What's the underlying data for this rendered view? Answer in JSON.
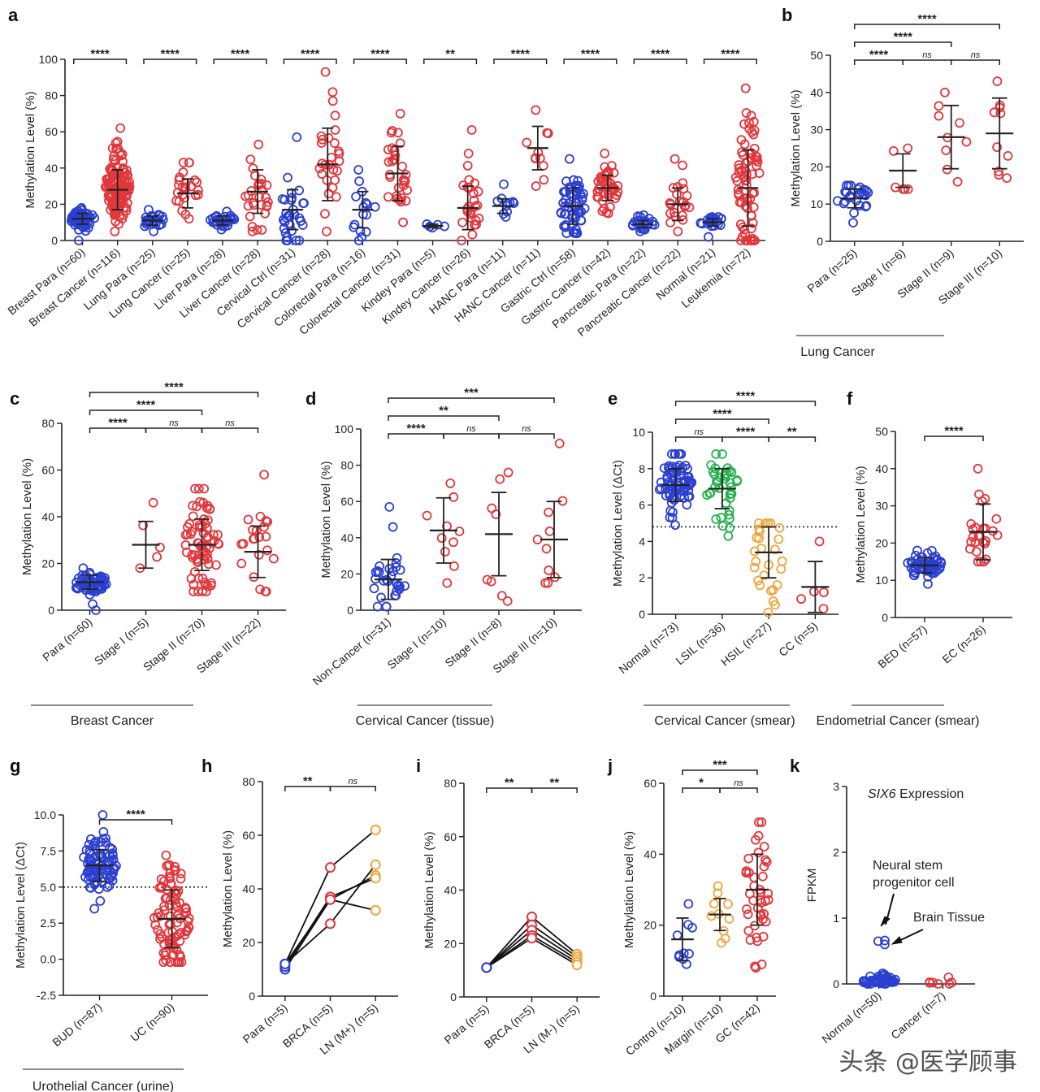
{
  "colors": {
    "blue": "#2b3fd1",
    "red": "#e2363c",
    "green": "#22b14c",
    "orange": "#f0a53a",
    "black": "#222222"
  },
  "watermark": "头条 @医学顾事",
  "chart_data": [
    {
      "id": "a",
      "type": "scatter",
      "panel_label": "a",
      "ylabel": "Methylation Level (%)",
      "ylim": [
        0,
        100
      ],
      "yticks": [
        "0",
        "20",
        "40",
        "60",
        "80",
        "100"
      ],
      "footer": "",
      "groups": [
        {
          "label": "Breast Para (n=60)",
          "color": "blue",
          "mean": 12,
          "sd": 3,
          "n": 60,
          "min": 0,
          "max": 18
        },
        {
          "label": "Breast Cancer (n=116)",
          "color": "red",
          "mean": 28,
          "sd": 11,
          "n": 116,
          "min": 5,
          "max": 62
        },
        {
          "label": "Lung Para (n=25)",
          "color": "blue",
          "mean": 11,
          "sd": 2.5,
          "n": 25,
          "min": 5,
          "max": 17
        },
        {
          "label": "Lung Cancer (n=25)",
          "color": "red",
          "mean": 26,
          "sd": 8,
          "n": 25,
          "min": 12,
          "max": 43
        },
        {
          "label": "Liver Para (n=28)",
          "color": "blue",
          "mean": 11,
          "sd": 2.5,
          "n": 28,
          "min": 6,
          "max": 16
        },
        {
          "label": "Liver Cancer (n=28)",
          "color": "red",
          "mean": 27,
          "sd": 12,
          "n": 28,
          "min": 5,
          "max": 53
        },
        {
          "label": "Cervical Ctrl (n=31)",
          "color": "blue",
          "mean": 17,
          "sd": 11,
          "n": 31,
          "min": 0,
          "max": 57
        },
        {
          "label": "Cervical Cancer (n=28)",
          "color": "red",
          "mean": 42,
          "sd": 20,
          "n": 28,
          "min": 5,
          "max": 93
        },
        {
          "label": "Colorectal Para (n=16)",
          "color": "blue",
          "mean": 17,
          "sd": 10,
          "n": 16,
          "min": 0,
          "max": 39
        },
        {
          "label": "Colorectal Cancer (n=31)",
          "color": "red",
          "mean": 37,
          "sd": 15,
          "n": 31,
          "min": 10,
          "max": 70
        },
        {
          "label": "Kindey Para (n=5)",
          "color": "blue",
          "mean": 8,
          "sd": 1,
          "n": 5,
          "min": 7,
          "max": 9
        },
        {
          "label": "Kindey Cancer (n=26)",
          "color": "red",
          "mean": 18,
          "sd": 12,
          "n": 26,
          "min": 0,
          "max": 61
        },
        {
          "label": "HANC Para (n=11)",
          "color": "blue",
          "mean": 19,
          "sd": 4,
          "n": 11,
          "min": 13,
          "max": 31
        },
        {
          "label": "HANC Cancer (n=11)",
          "color": "red",
          "mean": 51,
          "sd": 12,
          "n": 11,
          "min": 30,
          "max": 72
        },
        {
          "label": "Gastric Ctrl (n=58)",
          "color": "blue",
          "mean": 19,
          "sd": 10,
          "n": 58,
          "min": 4,
          "max": 45
        },
        {
          "label": "Gastric Cancer (n=42)",
          "color": "red",
          "mean": 29,
          "sd": 7,
          "n": 42,
          "min": 15,
          "max": 48
        },
        {
          "label": "Pancreatic Para (n=22)",
          "color": "blue",
          "mean": 9,
          "sd": 2,
          "n": 22,
          "min": 5,
          "max": 14
        },
        {
          "label": "Pancreatic Cancer (n=22)",
          "color": "red",
          "mean": 20,
          "sd": 9,
          "n": 22,
          "min": 5,
          "max": 45
        },
        {
          "label": "Normal (n=21)",
          "color": "blue",
          "mean": 10,
          "sd": 2,
          "n": 21,
          "min": 2,
          "max": 13
        },
        {
          "label": "Leukemia (n=72)",
          "color": "red",
          "mean": 29,
          "sd": 21,
          "n": 72,
          "min": 0,
          "max": 84
        }
      ],
      "brackets": [
        {
          "from": 0,
          "to": 1,
          "level": 0,
          "text": "****"
        },
        {
          "from": 2,
          "to": 3,
          "level": 0,
          "text": "****"
        },
        {
          "from": 4,
          "to": 5,
          "level": 0,
          "text": "****"
        },
        {
          "from": 6,
          "to": 7,
          "level": 0,
          "text": "****"
        },
        {
          "from": 8,
          "to": 9,
          "level": 0,
          "text": "****"
        },
        {
          "from": 10,
          "to": 11,
          "level": 0,
          "text": "**"
        },
        {
          "from": 12,
          "to": 13,
          "level": 0,
          "text": "****"
        },
        {
          "from": 14,
          "to": 15,
          "level": 0,
          "text": "****"
        },
        {
          "from": 16,
          "to": 17,
          "level": 0,
          "text": "****"
        },
        {
          "from": 18,
          "to": 19,
          "level": 0,
          "text": "****"
        }
      ]
    },
    {
      "id": "b",
      "type": "scatter",
      "panel_label": "b",
      "ylabel": "Methylation Level (%)",
      "ylim": [
        0,
        50
      ],
      "yticks": [
        "0",
        "10",
        "20",
        "30",
        "40",
        "50"
      ],
      "footer": "Lung Cancer",
      "groups": [
        {
          "label": "Para (n=25)",
          "color": "blue",
          "mean": 11.5,
          "sd": 2.5,
          "n": 25,
          "min": 5,
          "max": 15
        },
        {
          "label": "Stage I (n=6)",
          "color": "red",
          "mean": 19,
          "sd": 4.5,
          "n": 6,
          "min": 14,
          "max": 25
        },
        {
          "label": "Stage II (n=9)",
          "color": "red",
          "mean": 28,
          "sd": 8.5,
          "n": 9,
          "min": 16,
          "max": 40
        },
        {
          "label": "Stage III (n=10)",
          "color": "red",
          "mean": 29,
          "sd": 9.5,
          "n": 10,
          "min": 17,
          "max": 43
        }
      ],
      "brackets": [
        {
          "from": 0,
          "to": 1,
          "level": 0,
          "text": "****"
        },
        {
          "from": 1,
          "to": 2,
          "level": 0,
          "text": "ns"
        },
        {
          "from": 2,
          "to": 3,
          "level": 0,
          "text": "ns"
        },
        {
          "from": 0,
          "to": 2,
          "level": 1,
          "text": "****"
        },
        {
          "from": 0,
          "to": 3,
          "level": 2,
          "text": "****"
        }
      ]
    },
    {
      "id": "c",
      "type": "scatter",
      "panel_label": "c",
      "ylabel": "Methylation Level (%)",
      "ylim": [
        0,
        80
      ],
      "yticks": [
        "0",
        "20",
        "40",
        "60",
        "80"
      ],
      "footer": "Breast Cancer",
      "groups": [
        {
          "label": "Para (n=60)",
          "color": "blue",
          "mean": 12,
          "sd": 3,
          "n": 60,
          "min": 0,
          "max": 18
        },
        {
          "label": "Stage I (n=5)",
          "color": "red",
          "mean": 28,
          "sd": 10,
          "n": 5,
          "min": 18,
          "max": 46
        },
        {
          "label": "Stage II (n=70)",
          "color": "red",
          "mean": 28,
          "sd": 11,
          "n": 70,
          "min": 8,
          "max": 52
        },
        {
          "label": "Stage III (n=22)",
          "color": "red",
          "mean": 25,
          "sd": 11,
          "n": 22,
          "min": 8,
          "max": 58
        }
      ],
      "brackets": [
        {
          "from": 0,
          "to": 1,
          "level": 0,
          "text": "****"
        },
        {
          "from": 1,
          "to": 2,
          "level": 0,
          "text": "ns"
        },
        {
          "from": 2,
          "to": 3,
          "level": 0,
          "text": "ns"
        },
        {
          "from": 0,
          "to": 2,
          "level": 1,
          "text": "****"
        },
        {
          "from": 0,
          "to": 3,
          "level": 2,
          "text": "****"
        }
      ]
    },
    {
      "id": "d",
      "type": "scatter",
      "panel_label": "d",
      "ylabel": "Methylation Level (%)",
      "ylim": [
        0,
        100
      ],
      "yticks": [
        "0",
        "20",
        "40",
        "60",
        "80",
        "100"
      ],
      "footer": "Cervical Cancer (tissue)",
      "groups": [
        {
          "label": "Non-Cancer (n=31)",
          "color": "blue",
          "mean": 17,
          "sd": 11,
          "n": 31,
          "min": 2,
          "max": 57
        },
        {
          "label": "Stage I (n=10)",
          "color": "red",
          "mean": 44,
          "sd": 18,
          "n": 10,
          "min": 15,
          "max": 70
        },
        {
          "label": "Stage II (n=8)",
          "color": "red",
          "mean": 42,
          "sd": 23,
          "n": 8,
          "min": 5,
          "max": 76
        },
        {
          "label": "Stage III (n=10)",
          "color": "red",
          "mean": 39,
          "sd": 21,
          "n": 10,
          "min": 15,
          "max": 92
        }
      ],
      "brackets": [
        {
          "from": 0,
          "to": 1,
          "level": 0,
          "text": "****"
        },
        {
          "from": 1,
          "to": 2,
          "level": 0,
          "text": "ns"
        },
        {
          "from": 2,
          "to": 3,
          "level": 0,
          "text": "ns"
        },
        {
          "from": 0,
          "to": 2,
          "level": 1,
          "text": "**"
        },
        {
          "from": 0,
          "to": 3,
          "level": 2,
          "text": "***"
        }
      ]
    },
    {
      "id": "e",
      "type": "scatter",
      "panel_label": "e",
      "ylabel": "Methylation Level (ΔCt)",
      "ylim": [
        0,
        10
      ],
      "yticks": [
        "0",
        "2",
        "4",
        "6",
        "8",
        "10"
      ],
      "footer": "Cervical Cancer (smear)",
      "cutoff": 4.8,
      "groups": [
        {
          "label": "Normal (n=73)",
          "color": "blue",
          "mean": 7.1,
          "sd": 0.9,
          "n": 73,
          "min": 4.9,
          "max": 8.8
        },
        {
          "label": "LSIL (n=36)",
          "color": "green",
          "mean": 6.9,
          "sd": 1.1,
          "n": 36,
          "min": 4.3,
          "max": 8.8
        },
        {
          "label": "HSIL (n=27)",
          "color": "orange",
          "mean": 3.4,
          "sd": 1.4,
          "n": 27,
          "min": 0.1,
          "max": 5
        },
        {
          "label": "CC (n=5)",
          "color": "red",
          "mean": 1.5,
          "sd": 1.4,
          "n": 5,
          "min": 0.3,
          "max": 4
        }
      ],
      "brackets": [
        {
          "from": 0,
          "to": 1,
          "level": 0,
          "text": "ns"
        },
        {
          "from": 1,
          "to": 2,
          "level": 0,
          "text": "****"
        },
        {
          "from": 2,
          "to": 3,
          "level": 0,
          "text": "**"
        },
        {
          "from": 0,
          "to": 2,
          "level": 1,
          "text": "****"
        },
        {
          "from": 0,
          "to": 3,
          "level": 2,
          "text": "****"
        }
      ]
    },
    {
      "id": "f",
      "type": "scatter",
      "panel_label": "f",
      "ylabel": "Methylation Level (%)",
      "ylim": [
        0,
        50
      ],
      "yticks": [
        "0",
        "10",
        "20",
        "30",
        "40",
        "50"
      ],
      "footer": "Endometrial Cancer (smear)",
      "groups": [
        {
          "label": "BED (n=57)",
          "color": "blue",
          "mean": 14,
          "sd": 2,
          "n": 57,
          "min": 9,
          "max": 18
        },
        {
          "label": "EC (n=26)",
          "color": "red",
          "mean": 23,
          "sd": 7.5,
          "n": 26,
          "min": 15,
          "max": 40
        }
      ],
      "brackets": [
        {
          "from": 0,
          "to": 1,
          "level": 0,
          "text": "****"
        }
      ]
    },
    {
      "id": "g",
      "type": "scatter",
      "panel_label": "g",
      "ylabel": "Methylation Level (ΔCt)",
      "ylim": [
        -2.5,
        10
      ],
      "yticks": [
        "-2.5",
        "0.0",
        "2.5",
        "5.0",
        "7.5",
        "10.0"
      ],
      "footer": "Urothelial Cancer  (urine)",
      "cutoff": 5.0,
      "groups": [
        {
          "label": "BUD (n=87)",
          "color": "blue",
          "mean": 6.5,
          "sd": 1.1,
          "n": 87,
          "min": 3.5,
          "max": 10
        },
        {
          "label": "UC (n=90)",
          "color": "red",
          "mean": 2.8,
          "sd": 2,
          "n": 90,
          "min": -0.2,
          "max": 7.2
        }
      ],
      "brackets": [
        {
          "from": 0,
          "to": 1,
          "level": 0,
          "text": "****"
        }
      ]
    },
    {
      "id": "h",
      "type": "line",
      "panel_label": "h",
      "ylabel": "Methylation Level (%)",
      "ylim": [
        0,
        80
      ],
      "yticks": [
        "0",
        "20",
        "40",
        "60",
        "80"
      ],
      "footer": "",
      "categories": [
        "Para (n=5)",
        "BRCA (n=5)",
        "LN (M+) (n=5)"
      ],
      "pointColors": [
        "blue",
        "red",
        "orange"
      ],
      "series": [
        [
          12,
          48,
          62
        ],
        [
          10,
          36,
          45
        ],
        [
          11,
          37,
          44
        ],
        [
          12,
          36,
          32
        ],
        [
          12,
          27,
          49
        ]
      ],
      "brackets": [
        {
          "from": 0,
          "to": 1,
          "level": 0,
          "text": "**"
        },
        {
          "from": 1,
          "to": 2,
          "level": 0,
          "text": "ns"
        }
      ]
    },
    {
      "id": "i",
      "type": "line",
      "panel_label": "i",
      "ylabel": "Methylation Level (%)",
      "ylim": [
        0,
        80
      ],
      "yticks": [
        "0",
        "20",
        "40",
        "60",
        "80"
      ],
      "footer": "",
      "categories": [
        "Para (n=5)",
        "BRCA (n=5)",
        "LN (M-) (n=5)"
      ],
      "pointColors": [
        "blue",
        "red",
        "orange"
      ],
      "series": [
        [
          11,
          30,
          16
        ],
        [
          11,
          27,
          15
        ],
        [
          11,
          25,
          14
        ],
        [
          11,
          23,
          13
        ],
        [
          11,
          22,
          12
        ]
      ],
      "brackets": [
        {
          "from": 0,
          "to": 1,
          "level": 0,
          "text": "**"
        },
        {
          "from": 1,
          "to": 2,
          "level": 0,
          "text": "**"
        }
      ]
    },
    {
      "id": "j",
      "type": "scatter",
      "panel_label": "j",
      "ylabel": "Methylation Level (%)",
      "ylim": [
        0,
        60
      ],
      "yticks": [
        "0",
        "20",
        "40",
        "60"
      ],
      "footer": "",
      "groups": [
        {
          "label": "Control (n=10)",
          "color": "blue",
          "mean": 16,
          "sd": 6,
          "n": 10,
          "min": 9,
          "max": 26
        },
        {
          "label": "Margin (n=10)",
          "color": "orange",
          "mean": 23,
          "sd": 4.5,
          "n": 10,
          "min": 15,
          "max": 31
        },
        {
          "label": "GC (n=42)",
          "color": "red",
          "mean": 30,
          "sd": 10,
          "n": 42,
          "min": 8,
          "max": 49
        }
      ],
      "brackets": [
        {
          "from": 0,
          "to": 1,
          "level": 0,
          "text": "*"
        },
        {
          "from": 1,
          "to": 2,
          "level": 0,
          "text": "ns"
        },
        {
          "from": 0,
          "to": 2,
          "level": 1,
          "text": "***"
        }
      ]
    },
    {
      "id": "k",
      "type": "scatter",
      "panel_label": "k",
      "ylabel": "FPKM",
      "ylim": [
        0,
        3
      ],
      "yticks": [
        "0",
        "1",
        "2",
        "3"
      ],
      "footer": "",
      "title": "SIX6 Expression",
      "annotations": [
        "Neural stem progenitor cell",
        "Brain Tissue"
      ],
      "groups": [
        {
          "label": "Normal (n=50)",
          "color": "blue",
          "mean": 0.05,
          "sd": 0.04,
          "n": 50,
          "min": 0,
          "max": 0.65,
          "noErr": true
        },
        {
          "label": "Cancer (n=7)",
          "color": "red",
          "mean": 0.03,
          "sd": 0.02,
          "n": 7,
          "min": 0,
          "max": 0.1,
          "noErr": true
        }
      ],
      "brackets": []
    }
  ]
}
